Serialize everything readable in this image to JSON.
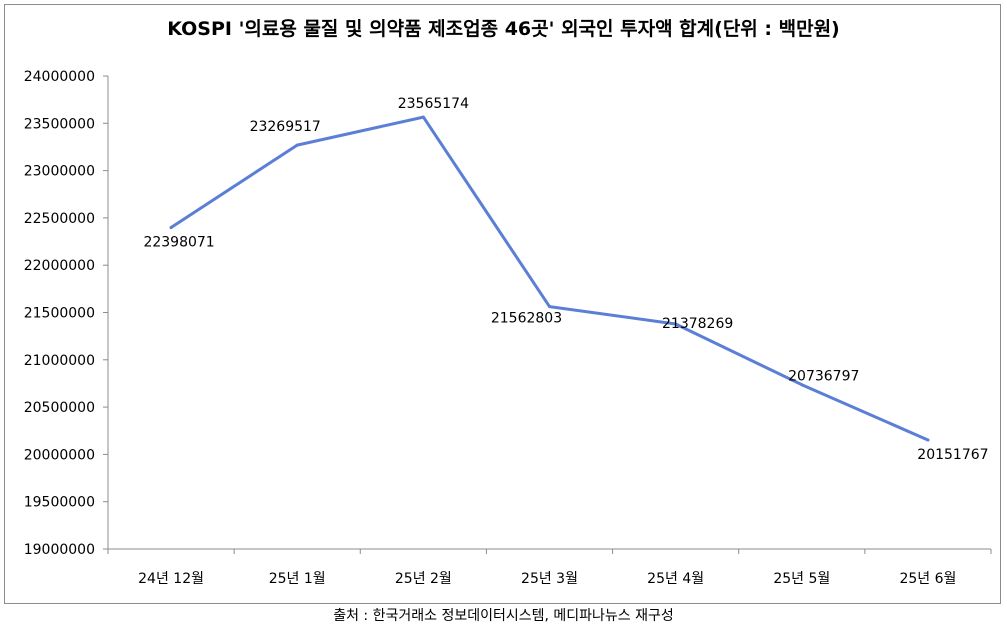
{
  "chart_data": {
    "type": "line",
    "title": "KOSPI '의료용 물질 및 의약품 제조업종 46곳' 외국인 투자액 합계(단위 : 백만원)",
    "categories": [
      "24년 12월",
      "25년 1월",
      "25년 2월",
      "25년 3월",
      "25년 4월",
      "25년 5월",
      "25년 6월"
    ],
    "series": [
      {
        "values": [
          22398071,
          23269517,
          23565174,
          21562803,
          21378269,
          20736797,
          20151767
        ]
      }
    ],
    "data_labels": [
      "22398071",
      "23269517",
      "23565174",
      "21562803",
      "21378269",
      "20736797",
      "20151767"
    ],
    "ylim": [
      19000000,
      24000000
    ],
    "y_ticks": [
      "19000000",
      "19500000",
      "20000000",
      "20500000",
      "21000000",
      "21500000",
      "22000000",
      "22500000",
      "23000000",
      "23500000",
      "24000000"
    ],
    "grid": false,
    "line_color": "#5b7fd6",
    "xlabel": "",
    "ylabel": ""
  },
  "source_note": "출처 : 한국거래소 정보데이터시스템, 메디파나뉴스 재구성"
}
